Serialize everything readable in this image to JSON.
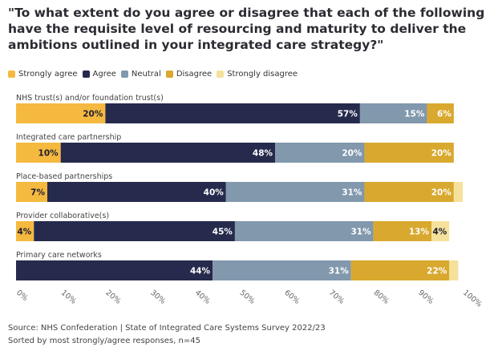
{
  "chart_data": {
    "type": "bar",
    "orientation": "horizontal",
    "stacked": true,
    "title": "\"To what extent do you agree or disagree that each of the following have the requisite level of resourcing and maturity to deliver the ambitions outlined in your integrated care strategy?\"",
    "categories": [
      "NHS trust(s) and/or foundation trust(s)",
      "Integrated care partnership",
      "Place-based partnerships",
      "Provider collaborative(s)",
      "Primary care networks"
    ],
    "series": [
      {
        "name": "Strongly agree",
        "color": "#f5b940",
        "label_color": "#1e1e30",
        "values": [
          20,
          10,
          7,
          4,
          0
        ]
      },
      {
        "name": "Agree",
        "color": "#262a4d",
        "label_color": "#ffffff",
        "values": [
          57,
          48,
          40,
          45,
          44
        ]
      },
      {
        "name": "Neutral",
        "color": "#8198ad",
        "label_color": "#ffffff",
        "values": [
          15,
          20,
          31,
          31,
          31
        ]
      },
      {
        "name": "Disagree",
        "color": "#d9a82e",
        "label_color": "#ffffff",
        "values": [
          6,
          20,
          20,
          13,
          22
        ]
      },
      {
        "name": "Strongly disagree",
        "color": "#f5e19c",
        "label_color": "#1e1e30",
        "values": [
          0,
          0,
          2,
          4,
          2
        ]
      }
    ],
    "data_labels": [
      [
        "20%",
        "57%",
        "15%",
        "6%",
        ""
      ],
      [
        "10%",
        "48%",
        "20%",
        "20%",
        ""
      ],
      [
        "7%",
        "40%",
        "31%",
        "20%",
        ""
      ],
      [
        "4%",
        "45%",
        "31%",
        "13%",
        "4%"
      ],
      [
        "",
        "44%",
        "31%",
        "22%",
        ""
      ]
    ],
    "xlim": [
      0,
      100
    ],
    "x_ticks": [
      "0%",
      "10%",
      "20%",
      "30%",
      "40%",
      "50%",
      "60%",
      "70%",
      "80%",
      "90%",
      "100%"
    ],
    "legend_position": "top-left",
    "grid": false
  },
  "footer": {
    "source": "Source: NHS Confederation | State of Integrated Care Systems Survey 2022/23",
    "note": "Sorted by most strongly/agree responses, n=45"
  }
}
